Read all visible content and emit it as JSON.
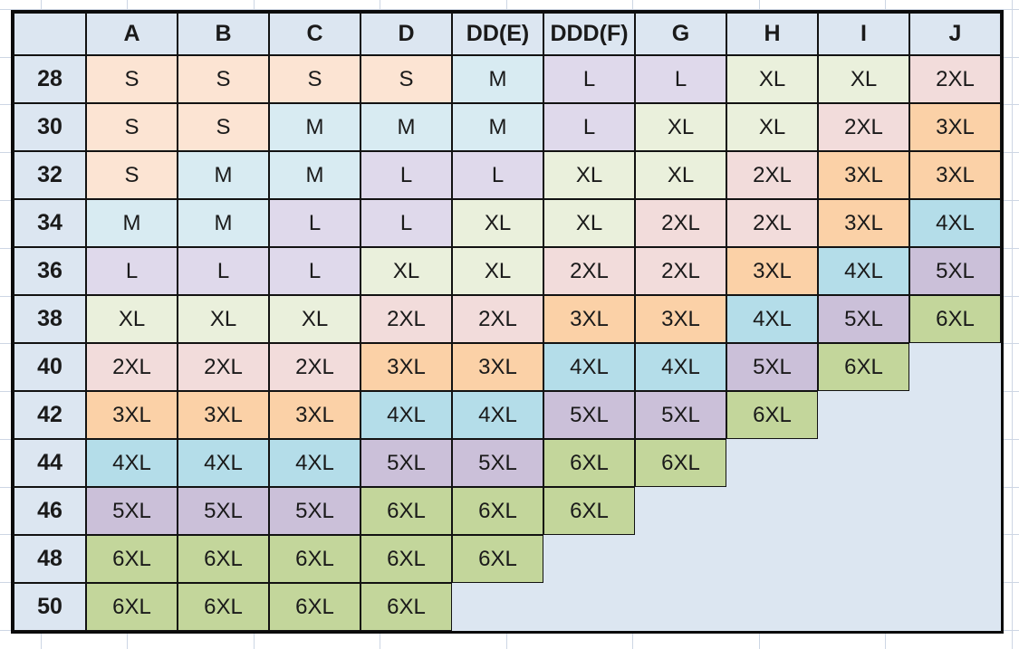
{
  "table": {
    "corner_label": "",
    "column_headers": [
      "A",
      "B",
      "C",
      "D",
      "DD(E)",
      "DDD(F)",
      "G",
      "H",
      "I",
      "J"
    ],
    "rows": [
      {
        "band": "28",
        "cells": [
          "S",
          "S",
          "S",
          "S",
          "M",
          "L",
          "L",
          "XL",
          "XL",
          "2XL"
        ]
      },
      {
        "band": "30",
        "cells": [
          "S",
          "S",
          "M",
          "M",
          "M",
          "L",
          "XL",
          "XL",
          "2XL",
          "3XL"
        ]
      },
      {
        "band": "32",
        "cells": [
          "S",
          "M",
          "M",
          "L",
          "L",
          "XL",
          "XL",
          "2XL",
          "3XL",
          "3XL"
        ]
      },
      {
        "band": "34",
        "cells": [
          "M",
          "M",
          "L",
          "L",
          "XL",
          "XL",
          "2XL",
          "2XL",
          "3XL",
          "4XL"
        ]
      },
      {
        "band": "36",
        "cells": [
          "L",
          "L",
          "L",
          "XL",
          "XL",
          "2XL",
          "2XL",
          "3XL",
          "4XL",
          "5XL"
        ]
      },
      {
        "band": "38",
        "cells": [
          "XL",
          "XL",
          "XL",
          "2XL",
          "2XL",
          "3XL",
          "3XL",
          "4XL",
          "5XL",
          "6XL"
        ]
      },
      {
        "band": "40",
        "cells": [
          "2XL",
          "2XL",
          "2XL",
          "3XL",
          "3XL",
          "4XL",
          "4XL",
          "5XL",
          "6XL",
          ""
        ]
      },
      {
        "band": "42",
        "cells": [
          "3XL",
          "3XL",
          "3XL",
          "4XL",
          "4XL",
          "5XL",
          "5XL",
          "6XL",
          "",
          ""
        ]
      },
      {
        "band": "44",
        "cells": [
          "4XL",
          "4XL",
          "4XL",
          "5XL",
          "5XL",
          "6XL",
          "6XL",
          "",
          "",
          ""
        ]
      },
      {
        "band": "46",
        "cells": [
          "5XL",
          "5XL",
          "5XL",
          "6XL",
          "6XL",
          "6XL",
          "",
          "",
          "",
          ""
        ]
      },
      {
        "band": "48",
        "cells": [
          "6XL",
          "6XL",
          "6XL",
          "6XL",
          "6XL",
          "",
          "",
          "",
          "",
          ""
        ]
      },
      {
        "band": "50",
        "cells": [
          "6XL",
          "6XL",
          "6XL",
          "6XL",
          "",
          "",
          "",
          "",
          "",
          ""
        ]
      }
    ]
  },
  "size_colors": {
    "S": "#FCE4D3",
    "M": "#D8EBF2",
    "L": "#DFD9EB",
    "XL": "#EAF0DC",
    "2XL": "#F2DCDB",
    "3XL": "#FBD1A7",
    "4XL": "#B4DDE9",
    "5XL": "#CBC0D9",
    "6XL": "#C3D69B"
  },
  "styles": {
    "header_fill": "#DCE6F1",
    "empty_fill": "#DCE6F1",
    "table_border": "#0B0B0B",
    "cell_line": "#121212",
    "text_color": "#1A1A1A",
    "page_background": "#FFFFFF",
    "excel_gridline": "#CDD6E4"
  },
  "chart_data": {
    "type": "table",
    "columns": [
      "A",
      "B",
      "C",
      "D",
      "DD(E)",
      "DDD(F)",
      "G",
      "H",
      "I",
      "J"
    ],
    "row_labels": [
      "28",
      "30",
      "32",
      "34",
      "36",
      "38",
      "40",
      "42",
      "44",
      "46",
      "48",
      "50"
    ],
    "values": [
      [
        "S",
        "S",
        "S",
        "S",
        "M",
        "L",
        "L",
        "XL",
        "XL",
        "2XL"
      ],
      [
        "S",
        "S",
        "M",
        "M",
        "M",
        "L",
        "XL",
        "XL",
        "2XL",
        "3XL"
      ],
      [
        "S",
        "M",
        "M",
        "L",
        "L",
        "XL",
        "XL",
        "2XL",
        "3XL",
        "3XL"
      ],
      [
        "M",
        "M",
        "L",
        "L",
        "XL",
        "XL",
        "2XL",
        "2XL",
        "3XL",
        "4XL"
      ],
      [
        "L",
        "L",
        "L",
        "XL",
        "XL",
        "2XL",
        "2XL",
        "3XL",
        "4XL",
        "5XL"
      ],
      [
        "XL",
        "XL",
        "XL",
        "2XL",
        "2XL",
        "3XL",
        "3XL",
        "4XL",
        "5XL",
        "6XL"
      ],
      [
        "2XL",
        "2XL",
        "2XL",
        "3XL",
        "3XL",
        "4XL",
        "4XL",
        "5XL",
        "6XL",
        ""
      ],
      [
        "3XL",
        "3XL",
        "3XL",
        "4XL",
        "4XL",
        "5XL",
        "5XL",
        "6XL",
        "",
        ""
      ],
      [
        "4XL",
        "4XL",
        "4XL",
        "5XL",
        "5XL",
        "6XL",
        "6XL",
        "",
        "",
        ""
      ],
      [
        "5XL",
        "5XL",
        "5XL",
        "6XL",
        "6XL",
        "6XL",
        "",
        "",
        "",
        ""
      ],
      [
        "6XL",
        "6XL",
        "6XL",
        "6XL",
        "6XL",
        "",
        "",
        "",
        "",
        ""
      ],
      [
        "6XL",
        "6XL",
        "6XL",
        "6XL",
        "",
        "",
        "",
        "",
        "",
        ""
      ]
    ]
  }
}
